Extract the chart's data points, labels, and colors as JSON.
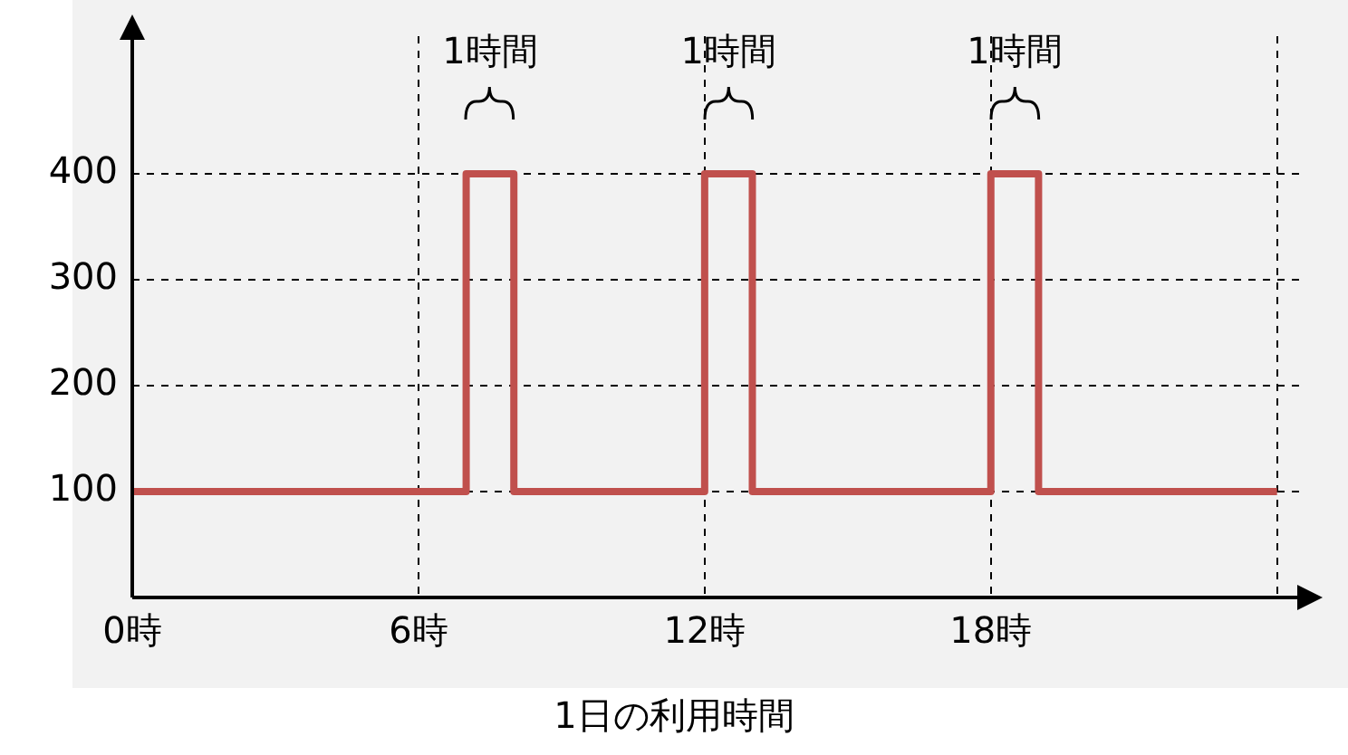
{
  "chart_data": {
    "type": "step",
    "xlabel": "1日の利用時間",
    "x": [
      0,
      7,
      8,
      12,
      13,
      18,
      19,
      24
    ],
    "values": [
      100,
      400,
      100,
      400,
      100,
      400,
      100,
      100
    ],
    "color": "#c0504d",
    "xlim": [
      0,
      24.5
    ],
    "xticks": [
      {
        "value": 0,
        "label": "0時"
      },
      {
        "value": 6,
        "label": "6時"
      },
      {
        "value": 12,
        "label": "12時"
      },
      {
        "value": 18,
        "label": "18時"
      },
      {
        "value": 24,
        "label": null
      }
    ],
    "ylim": [
      0,
      530
    ],
    "yticks": [
      100,
      200,
      300,
      400
    ],
    "grid": true,
    "legend": false,
    "line_style": "solid",
    "marker": "none",
    "annotations": [
      {
        "text": "1時間",
        "x": 7.5,
        "y": 400
      },
      {
        "text": "1時間",
        "x": 12.5,
        "y": 400
      },
      {
        "text": "1時間",
        "x": 18.5,
        "y": 400
      }
    ]
  }
}
